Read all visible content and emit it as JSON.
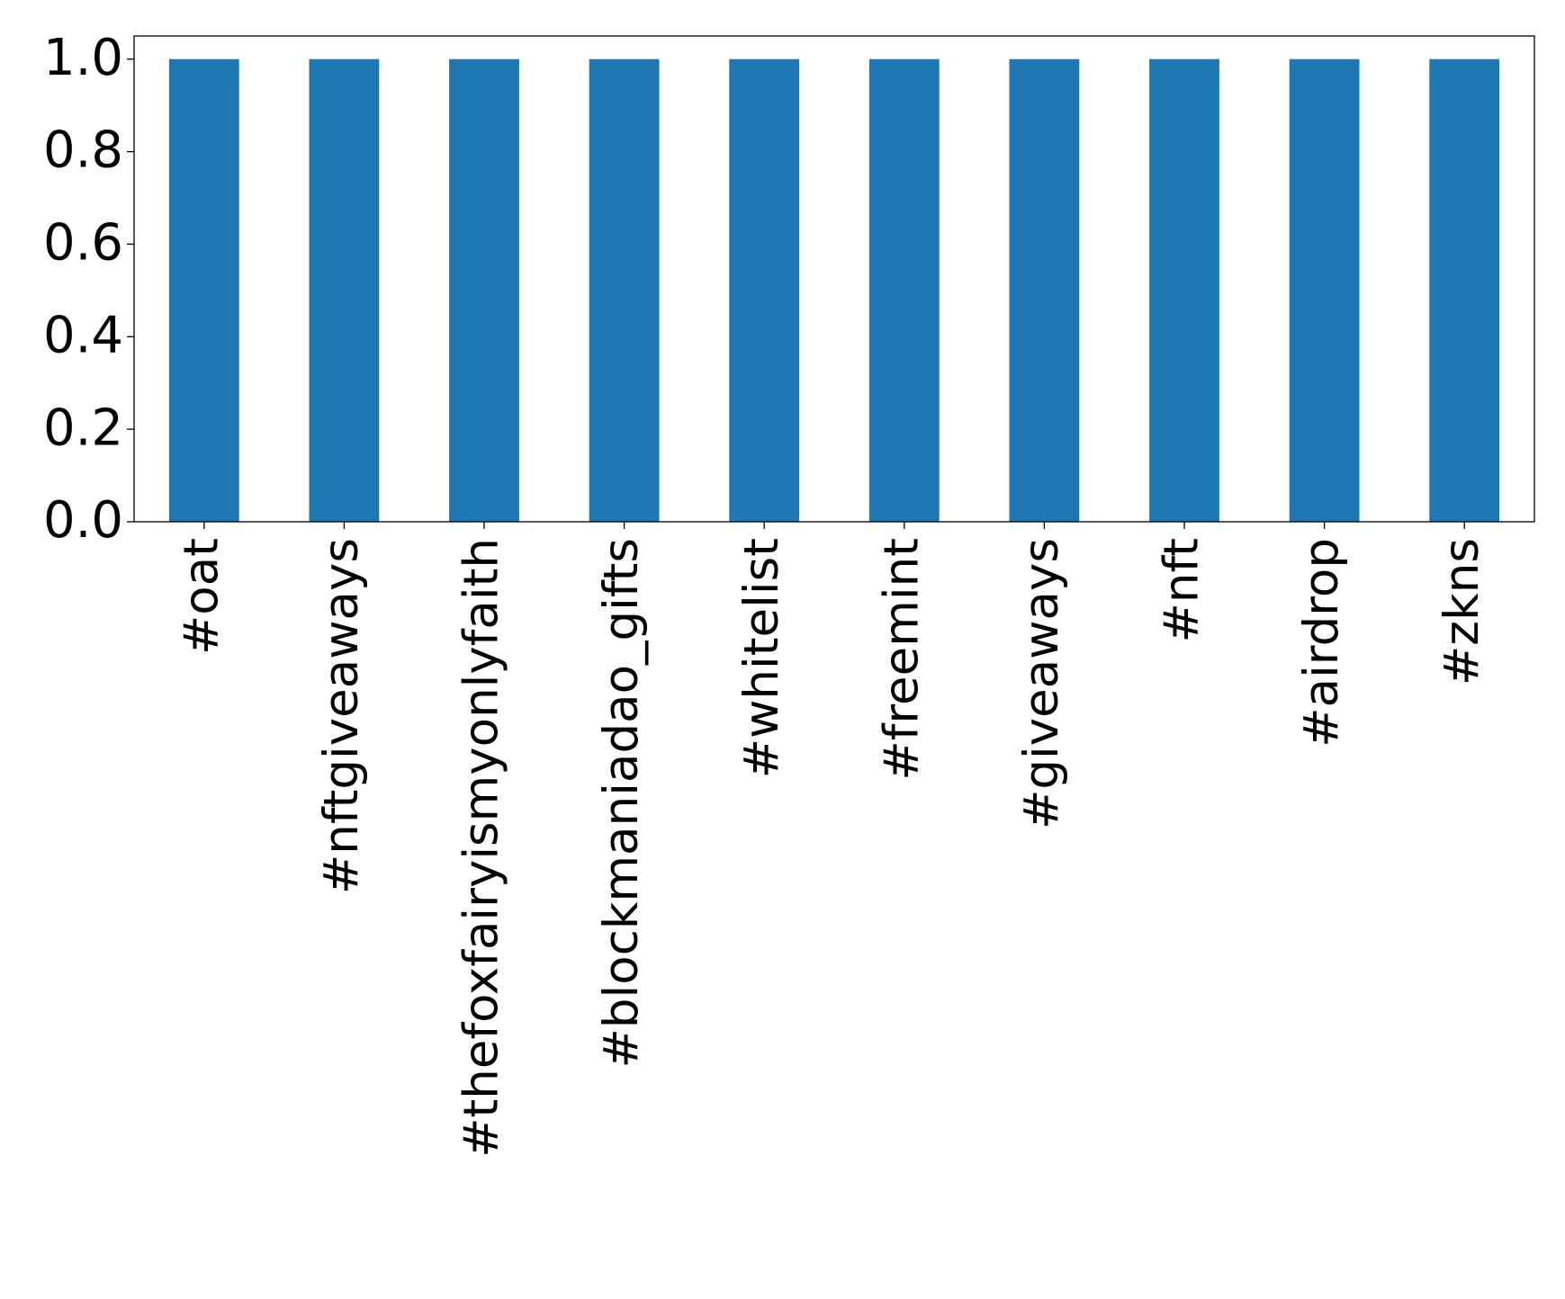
{
  "chart_data": {
    "type": "bar",
    "categories": [
      "#oat",
      "#nftgiveaways",
      "#thefoxfairyismyonlyfaith",
      "#blockmaniadao_gifts",
      "#whitelist",
      "#freemint",
      "#giveaways",
      "#nft",
      "#airdrop",
      "#zkns"
    ],
    "values": [
      1,
      1,
      1,
      1,
      1,
      1,
      1,
      1,
      1,
      1
    ],
    "color": "#1f77b4",
    "ylim": [
      0,
      1.05
    ],
    "yticks": [
      {
        "value": 0,
        "label": "0.0"
      },
      {
        "value": 0.2,
        "label": "0.2"
      },
      {
        "value": 0.4,
        "label": "0.4"
      },
      {
        "value": 0.6,
        "label": "0.6"
      },
      {
        "value": 0.8,
        "label": "0.8"
      },
      {
        "value": 1,
        "label": "1.0"
      }
    ],
    "grid": false
  }
}
